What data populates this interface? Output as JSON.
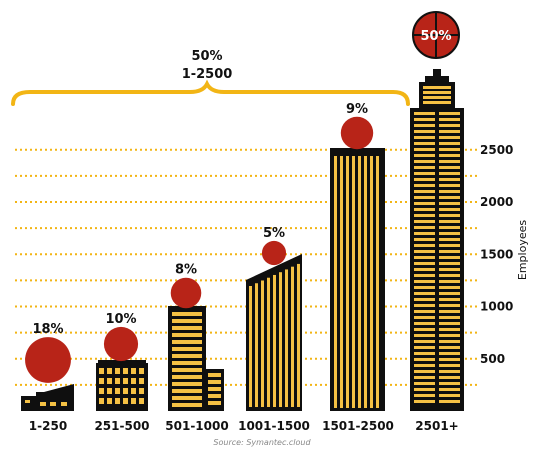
{
  "chart_data": {
    "type": "bar",
    "categories": [
      "1-250",
      "251-500",
      "501-1000",
      "1001-1500",
      "1501-2500",
      "2501+"
    ],
    "values": [
      18,
      10,
      8,
      5,
      9,
      50
    ],
    "value_labels": [
      "18%",
      "10%",
      "8%",
      "5%",
      "9%",
      "50%"
    ],
    "ylabel": "Employees",
    "yticks": [
      500,
      1000,
      1500,
      2000,
      2500
    ],
    "group_annotation": {
      "value": "50%",
      "range": "1-2500"
    },
    "source": "Source: Symantec.cloud",
    "grid": true
  },
  "colors": {
    "building": "#0f0f0f",
    "window": "#f5c144",
    "dot": "#b82418",
    "grid": "#f2b515",
    "brace": "#f2b515",
    "highlight_label": "#ffffff"
  }
}
